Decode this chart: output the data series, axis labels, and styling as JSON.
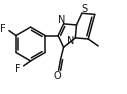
{
  "bg_color": "#ffffff",
  "line_color": "#111111",
  "line_width": 1.1,
  "text_color": "#111111",
  "font_size": 7.0,
  "figsize": [
    1.27,
    0.94
  ],
  "dpi": 100,
  "xlim": [
    0,
    127
  ],
  "ylim": [
    0,
    94
  ]
}
